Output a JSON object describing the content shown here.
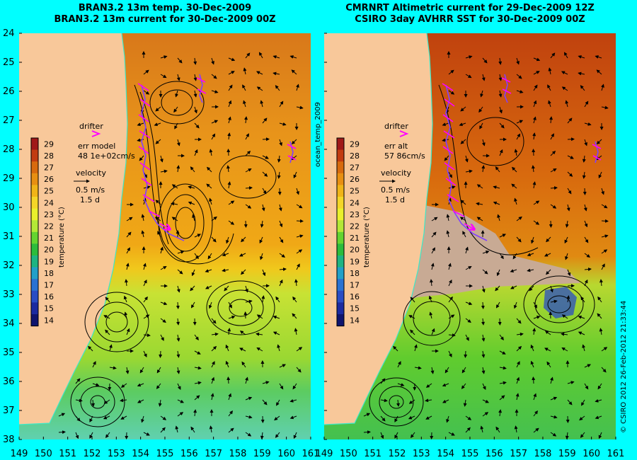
{
  "panels": [
    {
      "id": "left",
      "title_line1": "BRAN3.2 13m temp. 30-Dec-2009",
      "title_line2": "BRAN3.2 13m current for 30-Dec-2009 00Z",
      "drifter_label": "drifter",
      "err_label": "err model",
      "err_value": "48 1e+02cm/s",
      "velocity_label": "velocity",
      "velocity_scale": "0.5 m/s",
      "velocity_time": "1.5 d"
    },
    {
      "id": "right",
      "title_line1": "CMRNRT Altimetric current for 29-Dec-2009 12Z",
      "title_line2": "CSIRO 3day AVHRR SST for 30-Dec-2009 00Z",
      "drifter_label": "drifter",
      "err_label": "err alt",
      "err_value": "57 86cm/s",
      "velocity_label": "velocity",
      "velocity_scale": "0.5 m/s",
      "velocity_time": "1.5 d"
    }
  ],
  "colorbar": {
    "label": "temperature (°C)",
    "ticks": [
      "29",
      "28",
      "27",
      "26",
      "25",
      "24",
      "23",
      "22",
      "21",
      "20",
      "19",
      "18",
      "17",
      "16",
      "15",
      "14"
    ],
    "colors": [
      "#a01818",
      "#c23c10",
      "#d86a0e",
      "#e88f12",
      "#f0b418",
      "#f4d628",
      "#eaf02c",
      "#b4e836",
      "#64d430",
      "#2cbc3c",
      "#1eb482",
      "#22a0c8",
      "#2a72d2",
      "#2a4cc4",
      "#1c2aa0",
      "#10146e"
    ]
  },
  "axes": {
    "y_ticks": [
      "24",
      "25",
      "26",
      "27",
      "28",
      "29",
      "30",
      "31",
      "32",
      "33",
      "34",
      "35",
      "36",
      "37",
      "38"
    ],
    "x_ticks": [
      "149",
      "150",
      "151",
      "152",
      "153",
      "154",
      "155",
      "156",
      "157",
      "158",
      "159",
      "160",
      "161"
    ]
  },
  "side_label": "ocean_temp_2009",
  "credit": "© CSIRO 2012   26-Feb-2012 21:33:44",
  "colors": {
    "background": "#00ffff",
    "land": "#f8c89a",
    "cloud": "#c8aa94",
    "drifter": "#ff00ff",
    "track": "#8040ff"
  }
}
